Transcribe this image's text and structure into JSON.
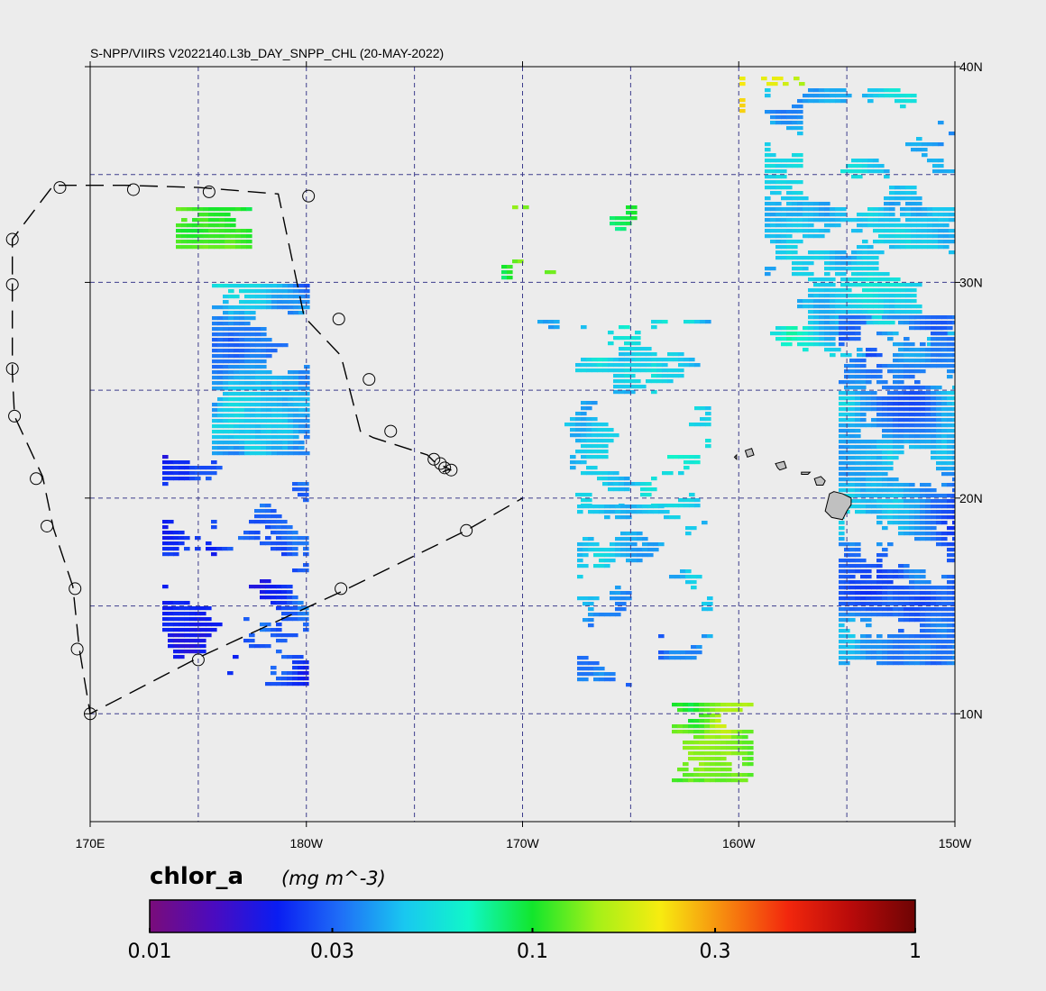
{
  "map": {
    "title": "S-NPP/VIIRS V2022140.L3b_DAY_SNPP_CHL (20-MAY-2022)",
    "projection": "cylindrical",
    "lon_range": [
      170,
      210
    ],
    "lat_range": [
      5,
      40
    ],
    "gridline_lons": [
      175,
      180,
      185,
      190,
      195,
      200,
      205
    ],
    "gridline_lats": [
      10,
      15,
      20,
      25,
      30,
      35
    ],
    "bottom_ticks": [
      {
        "lon": 170,
        "label": "170E"
      },
      {
        "lon": 180,
        "label": "180W"
      },
      {
        "lon": 190,
        "label": "170W"
      },
      {
        "lon": 200,
        "label": "160W"
      },
      {
        "lon": 210,
        "label": "150W"
      }
    ],
    "right_ticks": [
      {
        "lat": 40,
        "label": "40N"
      },
      {
        "lat": 30,
        "label": "30N"
      },
      {
        "lat": 20,
        "label": "20N"
      },
      {
        "lat": 10,
        "label": "10N"
      }
    ],
    "colors": {
      "background": "#ececec",
      "grid": "#3c3c8c",
      "track": "#000000",
      "land": "#c0c0c0"
    }
  },
  "track": {
    "points": [
      [
        186.3,
        21.2
      ],
      [
        186.5,
        21.3
      ],
      [
        186.7,
        21.3
      ],
      [
        185.9,
        21.7
      ],
      [
        185.6,
        22.0
      ],
      [
        183.1,
        22.8
      ],
      [
        182.5,
        23.1
      ],
      [
        181.6,
        26.6
      ],
      [
        179.9,
        28.4
      ],
      [
        178.7,
        34.1
      ],
      [
        175.0,
        34.4
      ],
      [
        171.6,
        34.5
      ],
      [
        168.3,
        34.5
      ],
      [
        166.4,
        32.0
      ],
      [
        166.4,
        29.9
      ],
      [
        166.4,
        25.8
      ],
      [
        166.5,
        23.8
      ],
      [
        167.8,
        21.0
      ],
      [
        168.3,
        18.6
      ],
      [
        169.2,
        15.9
      ],
      [
        169.5,
        13.0
      ],
      [
        170.0,
        10.0
      ],
      [
        175.0,
        12.6
      ],
      [
        181.7,
        15.7
      ],
      [
        187.4,
        18.5
      ],
      [
        190.0,
        20.0
      ]
    ],
    "circle_points": [
      [
        186.7,
        21.3
      ],
      [
        186.4,
        21.4
      ],
      [
        186.2,
        21.6
      ],
      [
        185.9,
        21.8
      ],
      [
        183.9,
        23.1
      ],
      [
        182.9,
        25.5
      ],
      [
        181.5,
        28.3
      ],
      [
        180.1,
        34.0
      ],
      [
        175.5,
        34.2
      ],
      [
        172.0,
        34.3
      ],
      [
        168.6,
        34.4
      ],
      [
        166.4,
        32.0
      ],
      [
        166.4,
        29.9
      ],
      [
        166.4,
        26.0
      ],
      [
        166.5,
        23.8
      ],
      [
        167.5,
        20.9
      ],
      [
        168.0,
        18.7
      ],
      [
        169.3,
        15.8
      ],
      [
        169.4,
        13.0
      ],
      [
        170.0,
        10.0
      ],
      [
        175.0,
        12.5
      ],
      [
        181.6,
        15.8
      ],
      [
        187.4,
        18.5
      ]
    ]
  },
  "colorbar": {
    "variable": "chlor_a",
    "units": "(mg m^-3)",
    "scale": "log",
    "min": 0.01,
    "max": 1,
    "tick_values": [
      0.01,
      0.03,
      0.1,
      0.3,
      1
    ],
    "tick_labels": [
      "0.01",
      "0.03",
      "0.1",
      "0.3",
      "1"
    ],
    "stops": [
      "#7a0c7a",
      "#4b0bbf",
      "#0a1df2",
      "#1f6ff7",
      "#19c8f0",
      "#10f7c8",
      "#12e62c",
      "#a4f018",
      "#f7ec10",
      "#f78a0f",
      "#f2270d",
      "#b80a0a",
      "#6e0404"
    ]
  },
  "legend": {
    "variable_label": "chlor_a",
    "units_label": "(mg m^-3)"
  }
}
